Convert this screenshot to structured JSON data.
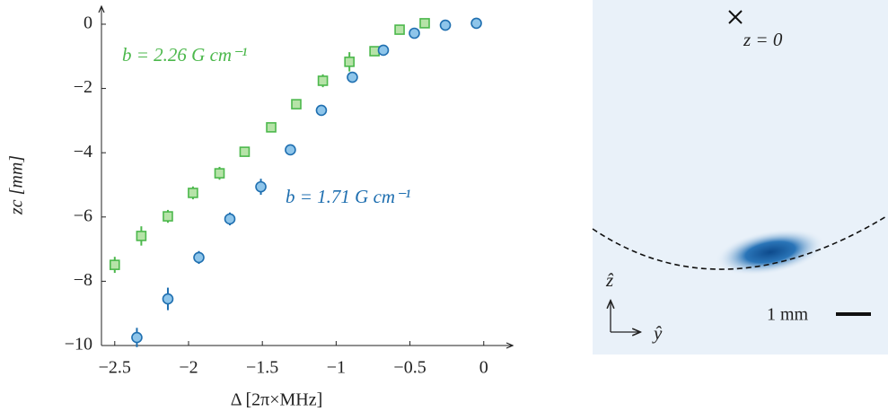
{
  "chart_data": {
    "type": "scatter",
    "x_label": "Δ [2π×MHz]",
    "y_label": "zc [mm]",
    "xlim": [
      -2.59,
      0.19
    ],
    "ylim": [
      -10,
      0.53
    ],
    "xticks": [
      {
        "value": -2.5,
        "label": "−2.5"
      },
      {
        "value": -2,
        "label": "−2"
      },
      {
        "value": -1.5,
        "label": "−1.5"
      },
      {
        "value": -1,
        "label": "−1"
      },
      {
        "value": -0.5,
        "label": "−0.5"
      },
      0
    ],
    "yticks": [
      0,
      {
        "value": -2,
        "label": "−2"
      },
      {
        "value": -4,
        "label": "−4"
      },
      {
        "value": -6,
        "label": "−6"
      },
      {
        "value": -8,
        "label": "−8"
      },
      {
        "value": -10,
        "label": "−10"
      }
    ],
    "series": [
      {
        "name": "b = 2.26 G cm⁻¹",
        "color": "#4cb84c",
        "fill": "#b6e3a8",
        "marker": "square",
        "x": [
          -2.5,
          -2.32,
          -2.14,
          -1.97,
          -1.79,
          -1.62,
          -1.44,
          -1.27,
          -1.09,
          -0.91,
          -0.74,
          -0.57,
          -0.4
        ],
        "values": [
          -7.49,
          -6.59,
          -5.98,
          -5.25,
          -4.64,
          -3.97,
          -3.21,
          -2.49,
          -1.76,
          -1.17,
          -0.84,
          -0.17,
          0.03
        ],
        "errors": [
          0.25,
          0.3,
          0.2,
          0.2,
          0.2,
          0.15,
          0.15,
          0.15,
          0.2,
          0.3,
          0.15,
          0.1,
          0.1
        ]
      },
      {
        "name": "b = 1.71 G cm⁻¹",
        "color": "#1f6fb0",
        "fill": "#8ec5ea",
        "marker": "circle",
        "x": [
          -2.35,
          -2.14,
          -1.93,
          -1.72,
          -1.51,
          -1.31,
          -1.1,
          -0.89,
          -0.68,
          -0.47,
          -0.26,
          -0.05
        ],
        "values": [
          -9.75,
          -8.55,
          -7.26,
          -6.06,
          -5.06,
          -3.91,
          -2.68,
          -1.65,
          -0.81,
          -0.28,
          -0.03,
          0.03
        ],
        "errors": [
          0.3,
          0.35,
          0.2,
          0.2,
          0.25,
          0.15,
          0.15,
          0.15,
          0.1,
          0.1,
          0.1,
          0.1
        ]
      }
    ]
  },
  "image": {
    "marker_label": "z = 0",
    "z_axis": "ẑ",
    "y_axis": "ŷ",
    "scale_label": "1 mm"
  }
}
